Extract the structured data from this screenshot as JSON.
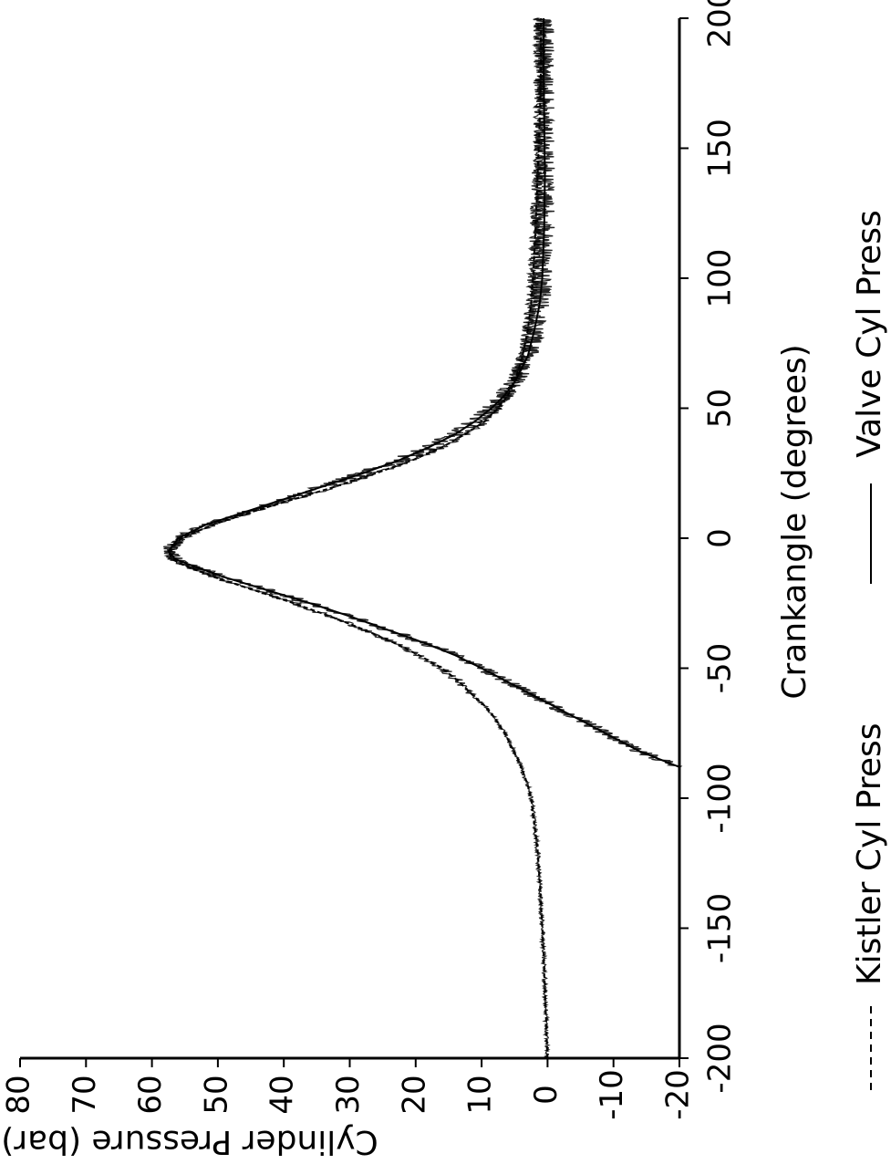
{
  "chart_data": {
    "type": "line",
    "title": "",
    "xlabel": "Crankangle (degrees)",
    "ylabel": "Cylinder Pressure (bar)",
    "xlim": [
      -200,
      200
    ],
    "ylim": [
      -20,
      80
    ],
    "xticks": [
      "-200",
      "-150",
      "-100",
      "-50",
      "0",
      "50",
      "100",
      "150",
      "200"
    ],
    "yticks": [
      "-20",
      "-10",
      "0",
      "10",
      "20",
      "30",
      "40",
      "50",
      "60",
      "70",
      "80"
    ],
    "grid": false,
    "orientation": "rotated 90 degrees counter-clockwise",
    "legend_position": "bottom",
    "series": [
      {
        "name": "Kistler Cyl Press",
        "style": "dashed",
        "color": "#000000",
        "x": [
          -200,
          -180,
          -160,
          -140,
          -120,
          -110,
          -100,
          -95,
          -90,
          -85,
          -80,
          -75,
          -70,
          -65,
          -60,
          -55,
          -50,
          -45,
          -40,
          -35,
          -30,
          -25,
          -20,
          -15,
          -10,
          -8,
          -5,
          0,
          5,
          10,
          15,
          20,
          25,
          30,
          35,
          40,
          45,
          50,
          55,
          60,
          70,
          80,
          90,
          100,
          120,
          140,
          160,
          180,
          200
        ],
        "y": [
          0,
          0.3,
          0.6,
          1.0,
          1.5,
          2.0,
          2.5,
          3.0,
          3.7,
          4.5,
          5.5,
          6.5,
          7.8,
          9.3,
          11.5,
          13.5,
          16.0,
          19.5,
          23.5,
          28.0,
          33.0,
          38.5,
          44.5,
          50.5,
          55.5,
          57.0,
          57.5,
          55.5,
          51.0,
          45.0,
          38.5,
          32.0,
          26.0,
          20.5,
          16.0,
          12.5,
          9.5,
          7.5,
          6.0,
          5.0,
          3.8,
          3.0,
          2.5,
          2.2,
          1.8,
          1.5,
          1.2,
          1.0,
          1.0
        ]
      },
      {
        "name": "Valve Cyl Press",
        "style": "solid",
        "color": "#000000",
        "x": [
          -88,
          -85,
          -82,
          -78,
          -74,
          -70,
          -66,
          -62,
          -58,
          -54,
          -50,
          -45,
          -40,
          -35,
          -30,
          -25,
          -20,
          -15,
          -10,
          -8,
          -5,
          0,
          5,
          10,
          15,
          20,
          25,
          30,
          35,
          40,
          45,
          50,
          55,
          60,
          70,
          80,
          90,
          100,
          120,
          140,
          160,
          180,
          200
        ],
        "y": [
          -20,
          -17,
          -14,
          -11,
          -8,
          -5,
          -2,
          1,
          4,
          7,
          10,
          14,
          19,
          24.5,
          30,
          36,
          42.5,
          49,
          54.5,
          56.5,
          57.5,
          56,
          52,
          46,
          40,
          34,
          28,
          22.5,
          18,
          14,
          11,
          8.5,
          6.5,
          5,
          3,
          2,
          1.2,
          0.8,
          0.5,
          0.4,
          0.5,
          0.6,
          0.6
        ]
      }
    ]
  }
}
